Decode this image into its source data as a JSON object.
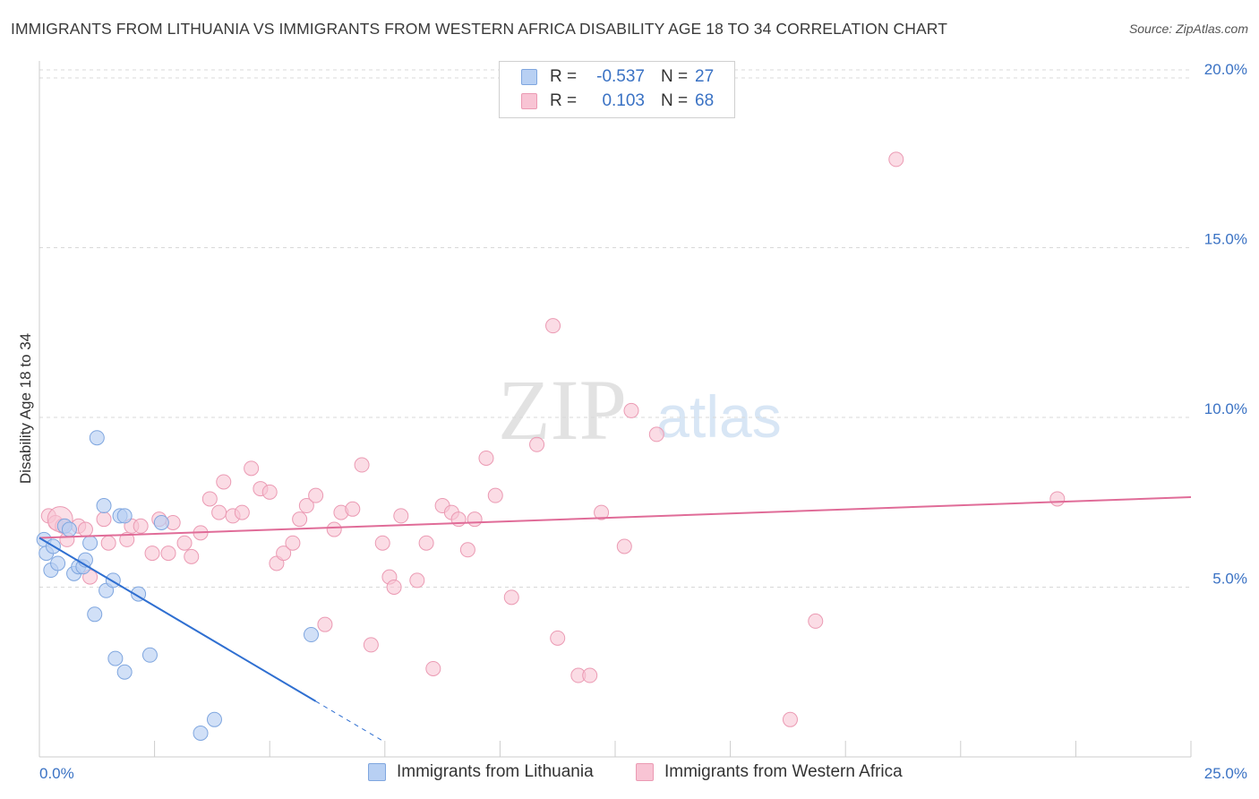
{
  "title": "IMMIGRANTS FROM LITHUANIA VS IMMIGRANTS FROM WESTERN AFRICA DISABILITY AGE 18 TO 34 CORRELATION CHART",
  "source": "Source: ZipAtlas.com",
  "watermark": {
    "zip": "ZIP",
    "atlas": "atlas"
  },
  "legend": {
    "rows": [
      {
        "r_label": "R =",
        "r_value": "-0.537",
        "n_label": "N =",
        "n_value": "27"
      },
      {
        "r_label": "R =",
        "r_value": "0.103",
        "n_label": "N =",
        "n_value": "68"
      }
    ]
  },
  "colors": {
    "blue_fill": "#b8d0f3",
    "blue_stroke": "#7fa6df",
    "blue_line": "#2f6fd1",
    "pink_fill": "#f8c4d4",
    "pink_stroke": "#eb9ab3",
    "pink_line": "#e06c98",
    "tick_label": "#3a72c4",
    "grid": "#d8d8d8"
  },
  "chart_data": {
    "type": "scatter",
    "title": "IMMIGRANTS FROM LITHUANIA VS IMMIGRANTS FROM WESTERN AFRICA DISABILITY AGE 18 TO 34 CORRELATION CHART",
    "xlabel": "",
    "ylabel": "Disability Age 18 to 34",
    "xlim": [
      0,
      25
    ],
    "ylim": [
      0,
      20.5
    ],
    "x_tick_labels": [
      "0.0%",
      "25.0%"
    ],
    "y_ticks": [
      5,
      10,
      15,
      20
    ],
    "y_tick_labels": [
      "5.0%",
      "10.0%",
      "15.0%",
      "20.0%"
    ],
    "grid": true,
    "series": [
      {
        "name": "Immigrants from Lithuania",
        "color": "#b8d0f3",
        "r": -0.537,
        "n": 27,
        "points": [
          [
            0.1,
            6.4
          ],
          [
            0.15,
            6.0
          ],
          [
            0.25,
            5.5
          ],
          [
            0.4,
            5.7
          ],
          [
            0.55,
            6.8
          ],
          [
            0.65,
            6.7
          ],
          [
            0.75,
            5.4
          ],
          [
            0.85,
            5.6
          ],
          [
            0.95,
            5.6
          ],
          [
            1.0,
            5.8
          ],
          [
            1.1,
            6.3
          ],
          [
            1.2,
            4.2
          ],
          [
            1.25,
            9.4
          ],
          [
            1.4,
            7.4
          ],
          [
            1.45,
            4.9
          ],
          [
            1.6,
            5.2
          ],
          [
            1.65,
            2.9
          ],
          [
            1.75,
            7.1
          ],
          [
            1.85,
            7.1
          ],
          [
            1.85,
            2.5
          ],
          [
            2.15,
            4.8
          ],
          [
            2.4,
            3.0
          ],
          [
            2.65,
            6.9
          ],
          [
            3.5,
            0.7
          ],
          [
            3.8,
            1.1
          ],
          [
            5.9,
            3.6
          ],
          [
            0.3,
            6.2
          ]
        ],
        "trend": {
          "x_start": 0.0,
          "y_start": 6.45,
          "x_solid_end": 6.0,
          "x_end": 7.5,
          "slope": -0.802
        }
      },
      {
        "name": "Immigrants from Western Africa",
        "color": "#f8c4d4",
        "r": 0.103,
        "n": 68,
        "points": [
          [
            0.2,
            7.1
          ],
          [
            0.35,
            6.9
          ],
          [
            0.5,
            6.8
          ],
          [
            0.6,
            6.4
          ],
          [
            0.85,
            6.8
          ],
          [
            1.0,
            6.7
          ],
          [
            1.1,
            5.3
          ],
          [
            1.4,
            7.0
          ],
          [
            1.5,
            6.3
          ],
          [
            1.9,
            6.4
          ],
          [
            2.0,
            6.8
          ],
          [
            2.2,
            6.8
          ],
          [
            2.45,
            6.0
          ],
          [
            2.6,
            7.0
          ],
          [
            2.8,
            6.0
          ],
          [
            2.9,
            6.9
          ],
          [
            3.15,
            6.3
          ],
          [
            3.3,
            5.9
          ],
          [
            3.5,
            6.6
          ],
          [
            3.7,
            7.6
          ],
          [
            3.9,
            7.2
          ],
          [
            4.0,
            8.1
          ],
          [
            4.2,
            7.1
          ],
          [
            4.4,
            7.2
          ],
          [
            4.6,
            8.5
          ],
          [
            4.8,
            7.9
          ],
          [
            5.0,
            7.8
          ],
          [
            5.15,
            5.7
          ],
          [
            5.3,
            6.0
          ],
          [
            5.5,
            6.3
          ],
          [
            5.65,
            7.0
          ],
          [
            5.8,
            7.4
          ],
          [
            6.0,
            7.7
          ],
          [
            6.2,
            3.9
          ],
          [
            6.4,
            6.7
          ],
          [
            6.55,
            7.2
          ],
          [
            6.8,
            7.3
          ],
          [
            7.0,
            8.6
          ],
          [
            7.2,
            3.3
          ],
          [
            7.45,
            6.3
          ],
          [
            7.6,
            5.3
          ],
          [
            7.7,
            5.0
          ],
          [
            7.85,
            7.1
          ],
          [
            8.2,
            5.2
          ],
          [
            8.4,
            6.3
          ],
          [
            8.55,
            2.6
          ],
          [
            8.75,
            7.4
          ],
          [
            8.95,
            7.2
          ],
          [
            9.1,
            7.0
          ],
          [
            9.3,
            6.1
          ],
          [
            9.45,
            7.0
          ],
          [
            9.7,
            8.8
          ],
          [
            9.9,
            7.7
          ],
          [
            10.25,
            4.7
          ],
          [
            10.8,
            9.2
          ],
          [
            11.15,
            12.7
          ],
          [
            11.25,
            3.5
          ],
          [
            11.7,
            2.4
          ],
          [
            11.95,
            2.4
          ],
          [
            12.2,
            7.2
          ],
          [
            12.7,
            6.2
          ],
          [
            12.85,
            10.2
          ],
          [
            13.4,
            9.5
          ],
          [
            16.3,
            1.1
          ],
          [
            16.85,
            4.0
          ],
          [
            18.6,
            17.6
          ],
          [
            22.1,
            7.6
          ],
          [
            0.45,
            7.0
          ]
        ],
        "trend": {
          "x_start": 0.0,
          "y_start": 6.45,
          "x_end": 25.0,
          "y_end": 7.65
        }
      }
    ]
  },
  "bottom_legend": {
    "items": [
      {
        "label": "Immigrants from Lithuania"
      },
      {
        "label": "Immigrants from Western Africa"
      }
    ]
  }
}
